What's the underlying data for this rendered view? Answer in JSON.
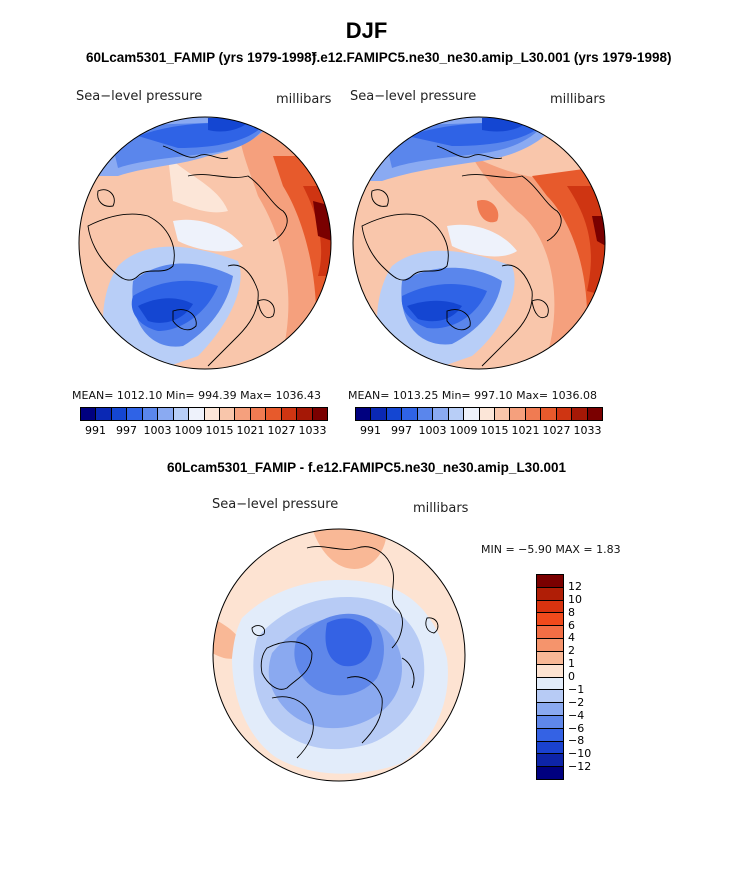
{
  "page": {
    "season": "DJF"
  },
  "panel1": {
    "title": "60Lcam5301_FAMIP (yrs 1979-1998)",
    "variable": "Sea−level pressure",
    "units": "millibars",
    "stats": "MEAN= 1012.10   Min= 994.39   Max= 1036.43"
  },
  "panel2": {
    "title": "f.e12.FAMIPC5.ne30_ne30.amip_L30.001 (yrs 1979-1998)",
    "variable": "Sea−level pressure",
    "units": "millibars",
    "stats": "MEAN= 1013.25   Min= 997.10   Max= 1036.08"
  },
  "panel3": {
    "title": "60Lcam5301_FAMIP - f.e12.FAMIPC5.ne30_ne30.amip_L30.001",
    "variable": "Sea−level pressure",
    "units": "millibars",
    "stats": "MIN =   −5.90 MAX =    1.83"
  },
  "colorbar_top": {
    "labels": [
      "991",
      "997",
      "1003",
      "1009",
      "1015",
      "1021",
      "1027",
      "1033"
    ],
    "colors": [
      "#00007f",
      "#0a28b4",
      "#1446d2",
      "#2f63e6",
      "#5a86ec",
      "#8aaaf2",
      "#b8cef7",
      "#eef2fb",
      "#fce6d8",
      "#f9c6ab",
      "#f5a07d",
      "#f07b52",
      "#e75a2c",
      "#cf3512",
      "#a51806",
      "#7a0000"
    ]
  },
  "colorbar_diff": {
    "labels": [
      "12",
      "10",
      "8",
      "6",
      "4",
      "2",
      "1",
      "0",
      "−1",
      "−2",
      "−4",
      "−6",
      "−8",
      "−10",
      "−12"
    ],
    "colors": [
      "#7a0000",
      "#b01e06",
      "#d8330f",
      "#f04a1c",
      "#f26e45",
      "#f5946c",
      "#f9b896",
      "#fde3d2",
      "#e2ecfa",
      "#b7cbf5",
      "#8aa9f0",
      "#5f87ea",
      "#3462e4",
      "#1a42d0",
      "#0d24a8",
      "#00007f"
    ]
  },
  "map_fields": {
    "panel1": [
      {
        "shape": "region-north-pacific-high",
        "color": "#e75a2c",
        "value": 1027
      },
      {
        "shape": "region-siberian-high",
        "color": "#cf3512",
        "value": 1033
      },
      {
        "shape": "region-aleutian-low",
        "color": "#1446d2",
        "value": 997
      },
      {
        "shape": "region-icelandic-low",
        "color": "#0a28b4",
        "value": 994
      }
    ],
    "panel2": [
      {
        "shape": "region-siberian-high",
        "color": "#cf3512",
        "value": 1033
      },
      {
        "shape": "region-aleutian-low",
        "color": "#1446d2",
        "value": 999
      },
      {
        "shape": "region-icelandic-low",
        "color": "#1446d2",
        "value": 997
      }
    ],
    "panel3": [
      {
        "shape": "region-arctic-negative",
        "color": "#5f87ea",
        "value": -4
      },
      {
        "shape": "region-outer-positive",
        "color": "#fde3d2",
        "value": 1
      }
    ]
  }
}
